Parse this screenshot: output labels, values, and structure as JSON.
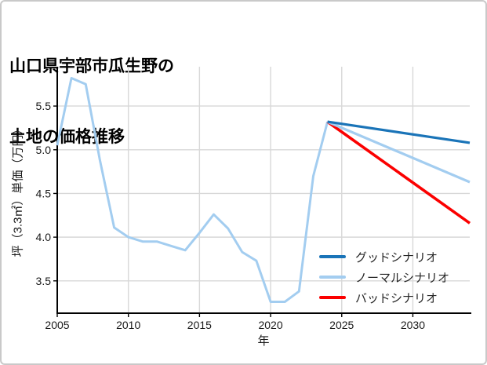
{
  "title_lines": [
    "山口県宇部市瓜生野の",
    "土地の価格推移"
  ],
  "chart_data": {
    "type": "line",
    "title": "山口県宇部市瓜生野の土地の価格推移",
    "xlabel": "年",
    "ylabel": "坪（3.3㎡）単価（万円）",
    "xlim": [
      2005,
      2034
    ],
    "ylim": [
      3.13,
      5.95
    ],
    "xticks": [
      "2005",
      "2010",
      "2015",
      "2020",
      "2025",
      "2030"
    ],
    "yticks": [
      "3.5",
      "4.0",
      "4.5",
      "5.0",
      "5.5"
    ],
    "grid": true,
    "legend_position": "lower right",
    "colors": {
      "grid": "#d8d8d8",
      "axis": "#000000",
      "tick_label": "#1a1a1a"
    },
    "series": [
      {
        "id": "historical",
        "name": "",
        "color": "#a3cdf0",
        "width": 3,
        "x": [
          2005,
          2006,
          2007,
          2008,
          2009,
          2010,
          2011,
          2012,
          2013,
          2014,
          2015,
          2016,
          2017,
          2018,
          2019,
          2020,
          2021,
          2022,
          2023,
          2024
        ],
        "values": [
          5.05,
          5.82,
          5.75,
          4.88,
          4.11,
          4.0,
          3.95,
          3.95,
          3.9,
          3.85,
          4.05,
          4.26,
          4.1,
          3.83,
          3.73,
          3.26,
          3.26,
          3.38,
          4.7,
          5.32
        ]
      },
      {
        "id": "bad",
        "name": "バッドシナリオ",
        "color": "#fb0000",
        "width": 3.6,
        "x": [
          2024,
          2034
        ],
        "values": [
          5.32,
          4.16
        ]
      },
      {
        "id": "normal",
        "name": "ノーマルシナリオ",
        "color": "#a3cdf0",
        "width": 3.2,
        "x": [
          2024,
          2034
        ],
        "values": [
          5.32,
          4.63
        ]
      },
      {
        "id": "good",
        "name": "グッドシナリオ",
        "color": "#1a74b8",
        "width": 3.2,
        "x": [
          2024,
          2034
        ],
        "values": [
          5.32,
          5.08
        ]
      }
    ]
  }
}
